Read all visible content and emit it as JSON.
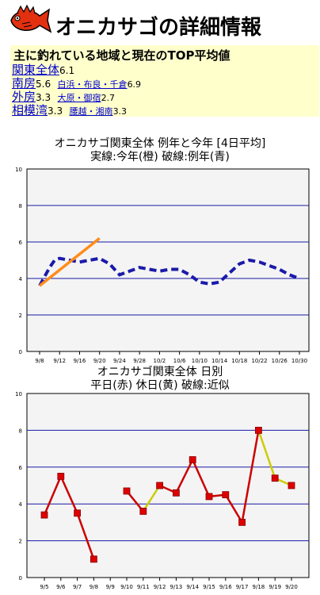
{
  "header": {
    "title": "オニカサゴの詳細情報",
    "logo_icon": "red-fish-icon"
  },
  "regions": {
    "heading": "主に釣れている地域と現在のTOP平均値",
    "rows": [
      {
        "region": "関東全体",
        "value": "6.1",
        "subareas": []
      },
      {
        "region": "南房",
        "value": "5.6",
        "subareas": [
          {
            "name": "白浜・布良・千倉",
            "value": "6.9"
          }
        ]
      },
      {
        "region": "外房",
        "value": "3.3",
        "subareas": [
          {
            "name": "大原・御宿",
            "value": "2.7"
          }
        ]
      },
      {
        "region": "相模湾",
        "value": "3.3",
        "subareas": [
          {
            "name": "腰越・湘南",
            "value": "3.3"
          }
        ]
      }
    ]
  },
  "chart_data": [
    {
      "type": "line",
      "title_line1": "オニカサゴ関東全体  例年と今年 [4日平均]",
      "title_line2": "実線:今年(橙) 破線:例年(青)",
      "x": [
        "9/8",
        "9/12",
        "9/16",
        "9/20",
        "9/24",
        "9/28",
        "10/2",
        "10/6",
        "10/10",
        "10/14",
        "10/18",
        "10/22",
        "10/26",
        "10/30"
      ],
      "ylim": [
        0,
        10
      ],
      "yticks": [
        0,
        2,
        4,
        6,
        8,
        10
      ],
      "series": [
        {
          "style": "solid",
          "color": "#ff8c1a",
          "points": [
            [
              0,
              3.6
            ],
            [
              3,
              6.2
            ]
          ]
        },
        {
          "style": "dashed",
          "color": "#1a1aaa",
          "points": [
            [
              0,
              3.6
            ],
            [
              0.25,
              4.1
            ],
            [
              0.5,
              4.6
            ],
            [
              0.75,
              5.0
            ],
            [
              1,
              5.1
            ],
            [
              1.5,
              5.0
            ],
            [
              2,
              4.9
            ],
            [
              2.5,
              5.0
            ],
            [
              3,
              5.1
            ],
            [
              3.5,
              4.8
            ],
            [
              4,
              4.2
            ],
            [
              4.5,
              4.4
            ],
            [
              5,
              4.6
            ],
            [
              5.5,
              4.5
            ],
            [
              6,
              4.4
            ],
            [
              6.5,
              4.5
            ],
            [
              7,
              4.5
            ],
            [
              7.5,
              4.2
            ],
            [
              8,
              3.8
            ],
            [
              8.5,
              3.7
            ],
            [
              9,
              3.8
            ],
            [
              9.5,
              4.3
            ],
            [
              10,
              4.8
            ],
            [
              10.5,
              5.0
            ],
            [
              11,
              4.9
            ],
            [
              11.5,
              4.7
            ],
            [
              12,
              4.5
            ],
            [
              12.5,
              4.2
            ],
            [
              13,
              4.0
            ]
          ]
        }
      ]
    },
    {
      "type": "line",
      "title_line1": "オニカサゴ関東全体  日別",
      "title_line2": "平日(赤) 休日(黄) 破線:近似",
      "x": [
        "9/5",
        "9/6",
        "9/7",
        "9/8",
        "9/9",
        "9/10",
        "9/11",
        "9/12",
        "9/13",
        "9/14",
        "9/15",
        "9/16",
        "9/17",
        "9/18",
        "9/19",
        "9/20"
      ],
      "ylim": [
        0,
        10
      ],
      "yticks": [
        0,
        2,
        4,
        6,
        8,
        10
      ],
      "weekday_color": "#cc0000",
      "holiday_color": "#cccc00",
      "marker_color": "#dd0000",
      "points": [
        {
          "i": 0,
          "y": 3.4
        },
        {
          "i": 1,
          "y": 5.5
        },
        {
          "i": 2,
          "y": 3.5
        },
        {
          "i": 3,
          "y": 1.0
        },
        {
          "i": 5,
          "y": 4.7
        },
        {
          "i": 6,
          "y": 3.6
        },
        {
          "i": 7,
          "y": 5.0
        },
        {
          "i": 8,
          "y": 4.6
        },
        {
          "i": 9,
          "y": 6.4
        },
        {
          "i": 10,
          "y": 4.4
        },
        {
          "i": 11,
          "y": 4.5
        },
        {
          "i": 12,
          "y": 3.0
        },
        {
          "i": 13,
          "y": 8.0
        },
        {
          "i": 14,
          "y": 5.4
        },
        {
          "i": 15,
          "y": 5.0
        }
      ],
      "segments": [
        {
          "from": 0,
          "to": 1,
          "kind": "weekday"
        },
        {
          "from": 1,
          "to": 2,
          "kind": "weekday"
        },
        {
          "from": 2,
          "to": 3,
          "kind": "weekday"
        },
        {
          "from": 5,
          "to": 6,
          "kind": "weekday"
        },
        {
          "from": 6,
          "to": 7,
          "kind": "holiday"
        },
        {
          "from": 7,
          "to": 8,
          "kind": "weekday"
        },
        {
          "from": 8,
          "to": 9,
          "kind": "weekday"
        },
        {
          "from": 9,
          "to": 10,
          "kind": "weekday"
        },
        {
          "from": 10,
          "to": 11,
          "kind": "weekday"
        },
        {
          "from": 11,
          "to": 12,
          "kind": "weekday"
        },
        {
          "from": 12,
          "to": 13,
          "kind": "weekday"
        },
        {
          "from": 13,
          "to": 14,
          "kind": "holiday"
        },
        {
          "from": 14,
          "to": 15,
          "kind": "holiday"
        }
      ]
    }
  ]
}
